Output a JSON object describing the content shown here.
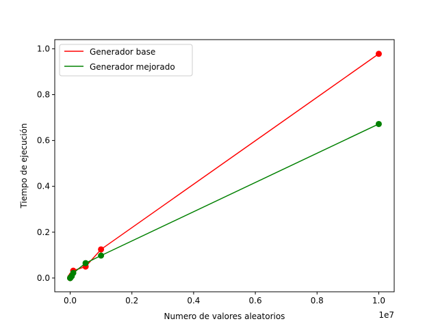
{
  "chart_data": {
    "type": "line",
    "title": "",
    "xlabel": "Numero de valores aleatorios",
    "ylabel": "Tiempo de ejecución",
    "x_offset_label": "1e7",
    "x_scale_factor": 10000000,
    "xlim": [
      -500000,
      10500000
    ],
    "ylim": [
      -0.06,
      1.04
    ],
    "x_ticks": [
      0,
      2000000,
      4000000,
      6000000,
      8000000,
      10000000
    ],
    "x_tick_labels": [
      "0.0",
      "0.2",
      "0.4",
      "0.6",
      "0.8",
      "1.0"
    ],
    "y_ticks": [
      0.0,
      0.2,
      0.4,
      0.6,
      0.8,
      1.0
    ],
    "y_tick_labels": [
      "0.0",
      "0.2",
      "0.4",
      "0.6",
      "0.8",
      "1.0"
    ],
    "grid": false,
    "legend_position": "top-left",
    "series": [
      {
        "name": "Generador base",
        "color": "#ff0000",
        "x": [
          10,
          100,
          1000,
          10000,
          50000,
          100000,
          500000,
          1000000,
          10000000
        ],
        "y": [
          0.0,
          0.0,
          0.0,
          0.004,
          0.012,
          0.032,
          0.05,
          0.125,
          0.978
        ]
      },
      {
        "name": "Generador mejorado",
        "color": "#008000",
        "x": [
          10,
          100,
          1000,
          10000,
          50000,
          100000,
          500000,
          1000000,
          10000000
        ],
        "y": [
          0.0,
          0.0,
          0.0,
          0.002,
          0.008,
          0.022,
          0.065,
          0.098,
          0.672
        ]
      }
    ]
  }
}
